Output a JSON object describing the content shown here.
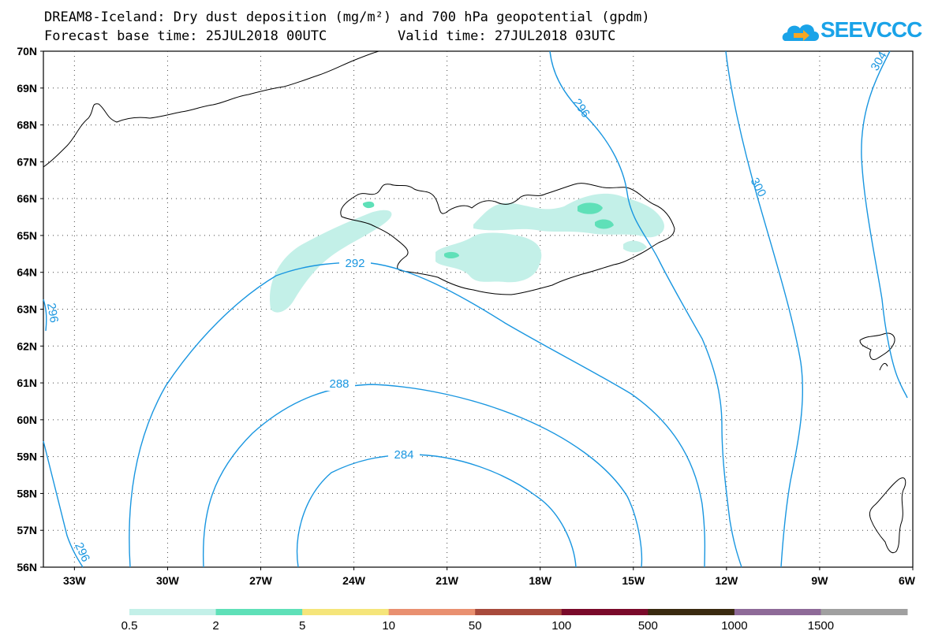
{
  "header": {
    "title_line1": "DREAM8-Iceland: Dry dust deposition (mg/m²) and 700 hPa geopotential (gpdm)",
    "base_time": "Forecast base time: 25JUL2018 00UTC",
    "valid_time": "Valid time: 27JUL2018 03UTC",
    "logo_text": "SEEVCCC",
    "logo_icon": "cloud-arrow-icon"
  },
  "map": {
    "lon_labels": [
      "33W",
      "30W",
      "27W",
      "24W",
      "21W",
      "18W",
      "15W",
      "12W",
      "9W",
      "6W"
    ],
    "lat_labels": [
      "70N",
      "69N",
      "68N",
      "67N",
      "66N",
      "65N",
      "64N",
      "63N",
      "62N",
      "61N",
      "60N",
      "59N",
      "58N",
      "57N",
      "56N"
    ],
    "contour_color": "#1996e0",
    "contour_labels": [
      "292",
      "288",
      "284",
      "296",
      "300",
      "304",
      "296",
      "296"
    ]
  },
  "legend": {
    "labels": [
      "0.5",
      "2",
      "5",
      "10",
      "50",
      "100",
      "500",
      "1000",
      "1500"
    ],
    "colors": [
      "#c3f0e8",
      "#5fe0b8",
      "#f5e57a",
      "#e99070",
      "#a84a3c",
      "#7a0a2a",
      "#3a2a10",
      "#8e6a98",
      "#a0a0a0"
    ]
  }
}
